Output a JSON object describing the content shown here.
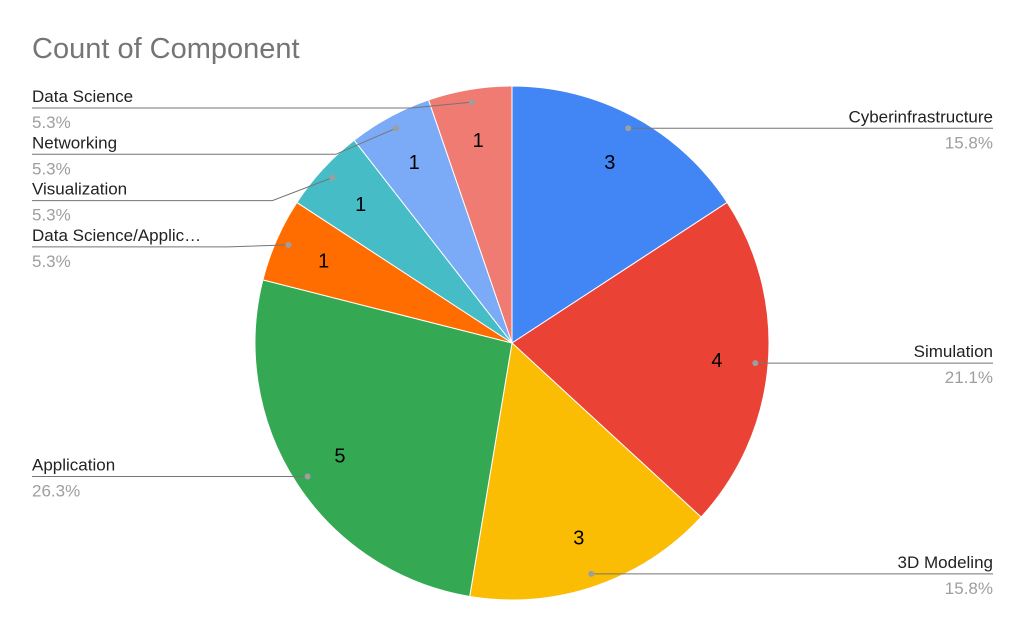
{
  "chart_data": {
    "type": "pie",
    "title": "Count of Component",
    "categories": [
      "Cyberinfrastructure",
      "Simulation",
      "3D Modeling",
      "Application",
      "Data Science/Applic…",
      "Visualization",
      "Networking",
      "Data Science"
    ],
    "values": [
      3,
      4,
      3,
      5,
      1,
      1,
      1,
      1
    ],
    "percent_labels": [
      "15.8%",
      "21.1%",
      "15.8%",
      "26.3%",
      "5.3%",
      "5.3%",
      "5.3%",
      "5.3%"
    ],
    "colors": [
      "#4285f4",
      "#ea4335",
      "#fbbc04",
      "#34a853",
      "#ff6d01",
      "#46bdc6",
      "#7baaf7",
      "#f07b72"
    ]
  }
}
